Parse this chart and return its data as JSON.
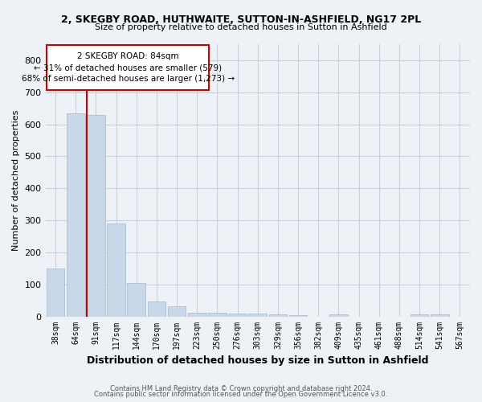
{
  "title_line1": "2, SKEGBY ROAD, HUTHWAITE, SUTTON-IN-ASHFIELD, NG17 2PL",
  "title_line2": "Size of property relative to detached houses in Sutton in Ashfield",
  "xlabel": "Distribution of detached houses by size in Sutton in Ashfield",
  "ylabel": "Number of detached properties",
  "categories": [
    "38sqm",
    "64sqm",
    "91sqm",
    "117sqm",
    "144sqm",
    "170sqm",
    "197sqm",
    "223sqm",
    "250sqm",
    "276sqm",
    "303sqm",
    "329sqm",
    "356sqm",
    "382sqm",
    "409sqm",
    "435sqm",
    "461sqm",
    "488sqm",
    "514sqm",
    "541sqm",
    "567sqm"
  ],
  "values": [
    150,
    635,
    628,
    289,
    105,
    46,
    31,
    11,
    11,
    10,
    8,
    7,
    5,
    0,
    7,
    0,
    0,
    0,
    7,
    7,
    0
  ],
  "bar_color": "#c8d8e8",
  "bar_edge_color": "#a0b8cc",
  "red_line_index": 2,
  "ylim": [
    0,
    850
  ],
  "yticks": [
    0,
    100,
    200,
    300,
    400,
    500,
    600,
    700,
    800
  ],
  "annotation_line1": "2 SKEGBY ROAD: 84sqm",
  "annotation_line2": "← 31% of detached houses are smaller (579)",
  "annotation_line3": "68% of semi-detached houses are larger (1,273) →",
  "annotation_box_color": "#ffffff",
  "annotation_box_edge": "#cc0000",
  "footer_line1": "Contains HM Land Registry data © Crown copyright and database right 2024.",
  "footer_line2": "Contains public sector information licensed under the Open Government Licence v3.0.",
  "background_color": "#eef2f6",
  "grid_color": "#c8d0dc"
}
